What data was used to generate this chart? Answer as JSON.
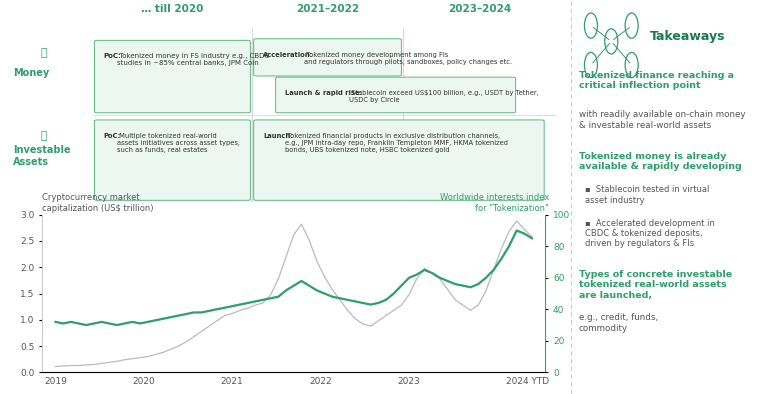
{
  "bg_color": "#ffffff",
  "green_dark": "#1a7a4a",
  "green_mid": "#2e9e6b",
  "green_light": "#edf7f1",
  "green_border": "#5cb87a",
  "gray_line": "#bbbbbb",
  "gray_text": "#555555",
  "timeline_headers": [
    "… till 2020",
    "2021–2022",
    "2023–2024"
  ],
  "money_poc": "PoC:",
  "money_poc_rest": " Tokenized money in FS industry e.g., CBDC\nstudies in ~85% central banks, JPM Coin",
  "money_accel": "Acceleration:",
  "money_accel_rest": " Tokenized money development among FIs\nand regulators through pilots, sandboxes, policy changes etc.",
  "money_launch": "Launch & rapid rise:",
  "money_launch_rest": " Stablecoin exceed US$100 billion, e.g., USDT by Tether,\nUSDC by Circle",
  "invest_poc": "PoC:",
  "invest_poc_rest": " Multiple tokenized real-world\nassets initiatives across asset types,\nsuch as funds, real estates",
  "invest_launch": "Launch:",
  "invest_launch_rest": " Tokenized financial products in exclusive distribution channels,\ne.g., JPM intra-day repo, Franklin Templeton MMF, HKMA tokenized\nbonds, UBS tokenized note, HSBC tokenized gold",
  "left_ylabel": "Cryptocurrency market\ncapitalization (US$ trillion)",
  "right_ylabel": "Worldwide interests index\nfor \"Tokenization\"",
  "x_ticks": [
    "2019",
    "2020",
    "2021",
    "2022",
    "2023",
    "2024 YTD"
  ],
  "ylim_left": [
    0,
    3.0
  ],
  "ylim_right": [
    0,
    100
  ],
  "yticks_left": [
    0.0,
    0.5,
    1.0,
    1.5,
    2.0,
    2.5,
    3.0
  ],
  "yticks_right": [
    0,
    20,
    40,
    60,
    80,
    100
  ],
  "crypto_y": [
    0.11,
    0.12,
    0.13,
    0.13,
    0.14,
    0.15,
    0.17,
    0.19,
    0.21,
    0.24,
    0.26,
    0.28,
    0.3,
    0.34,
    0.38,
    0.44,
    0.5,
    0.58,
    0.68,
    0.78,
    0.88,
    0.98,
    1.08,
    1.12,
    1.18,
    1.22,
    1.28,
    1.32,
    1.48,
    1.78,
    2.2,
    2.62,
    2.82,
    2.52,
    2.12,
    1.82,
    1.58,
    1.38,
    1.18,
    1.02,
    0.92,
    0.88,
    0.98,
    1.08,
    1.18,
    1.28,
    1.48,
    1.78,
    1.98,
    1.88,
    1.78,
    1.58,
    1.38,
    1.28,
    1.18,
    1.28,
    1.55,
    1.95,
    2.35,
    2.68,
    2.88,
    2.72,
    2.58
  ],
  "token_y": [
    32,
    31,
    32,
    31,
    30,
    31,
    32,
    31,
    30,
    31,
    32,
    31,
    32,
    33,
    34,
    35,
    36,
    37,
    38,
    38,
    39,
    40,
    41,
    42,
    43,
    44,
    45,
    46,
    47,
    48,
    52,
    55,
    58,
    55,
    52,
    50,
    48,
    47,
    46,
    45,
    44,
    43,
    44,
    46,
    50,
    55,
    60,
    62,
    65,
    63,
    60,
    58,
    56,
    55,
    54,
    56,
    60,
    65,
    72,
    80,
    90,
    88,
    85
  ],
  "takeaways_title": "Takeaways",
  "t1_bold": "Tokenized finance reaching a\ncritical inflection point",
  "t1_rest": " with\nreadily available on-chain money\n& investable real-world assets",
  "t2_bold": "Tokenized money is already\navailable & rapidly developing",
  "b1": "Stablecoin tested in virtual\nasset industry",
  "b2": "Accelerated development in\nCBDC & tokenized deposits,\ndriven by regulators & FIs",
  "t3_bold": "Types of concrete investable\ntokenized real-world assets\nare launched,",
  "t3_rest": " e.g., credit, funds,\ncommodity"
}
